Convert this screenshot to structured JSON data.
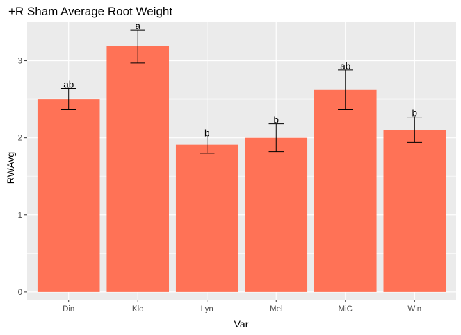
{
  "chart_data": {
    "type": "bar",
    "title": "+R Sham Average Root Weight",
    "xlabel": "Var",
    "ylabel": "RWAvg",
    "categories": [
      "Din",
      "Klo",
      "Lyn",
      "Mel",
      "MiC",
      "Win"
    ],
    "values": [
      2.5,
      3.19,
      1.91,
      2.0,
      2.62,
      2.1
    ],
    "error_low": [
      2.37,
      2.97,
      1.8,
      1.82,
      2.37,
      1.94
    ],
    "error_high": [
      2.64,
      3.4,
      2.01,
      2.18,
      2.88,
      2.27
    ],
    "group_labels": [
      "ab",
      "a",
      "b",
      "b",
      "ab",
      "b"
    ],
    "ylim": [
      -0.1,
      3.5
    ],
    "yticks": [
      0,
      1,
      2,
      3
    ],
    "grid": true,
    "legend": "none",
    "colors": {
      "bar": "#FF7256",
      "panel": "#EBEBEB",
      "grid_major": "#FFFFFF",
      "tick_text": "#4D4D4D",
      "error_bar": "#000000"
    }
  }
}
